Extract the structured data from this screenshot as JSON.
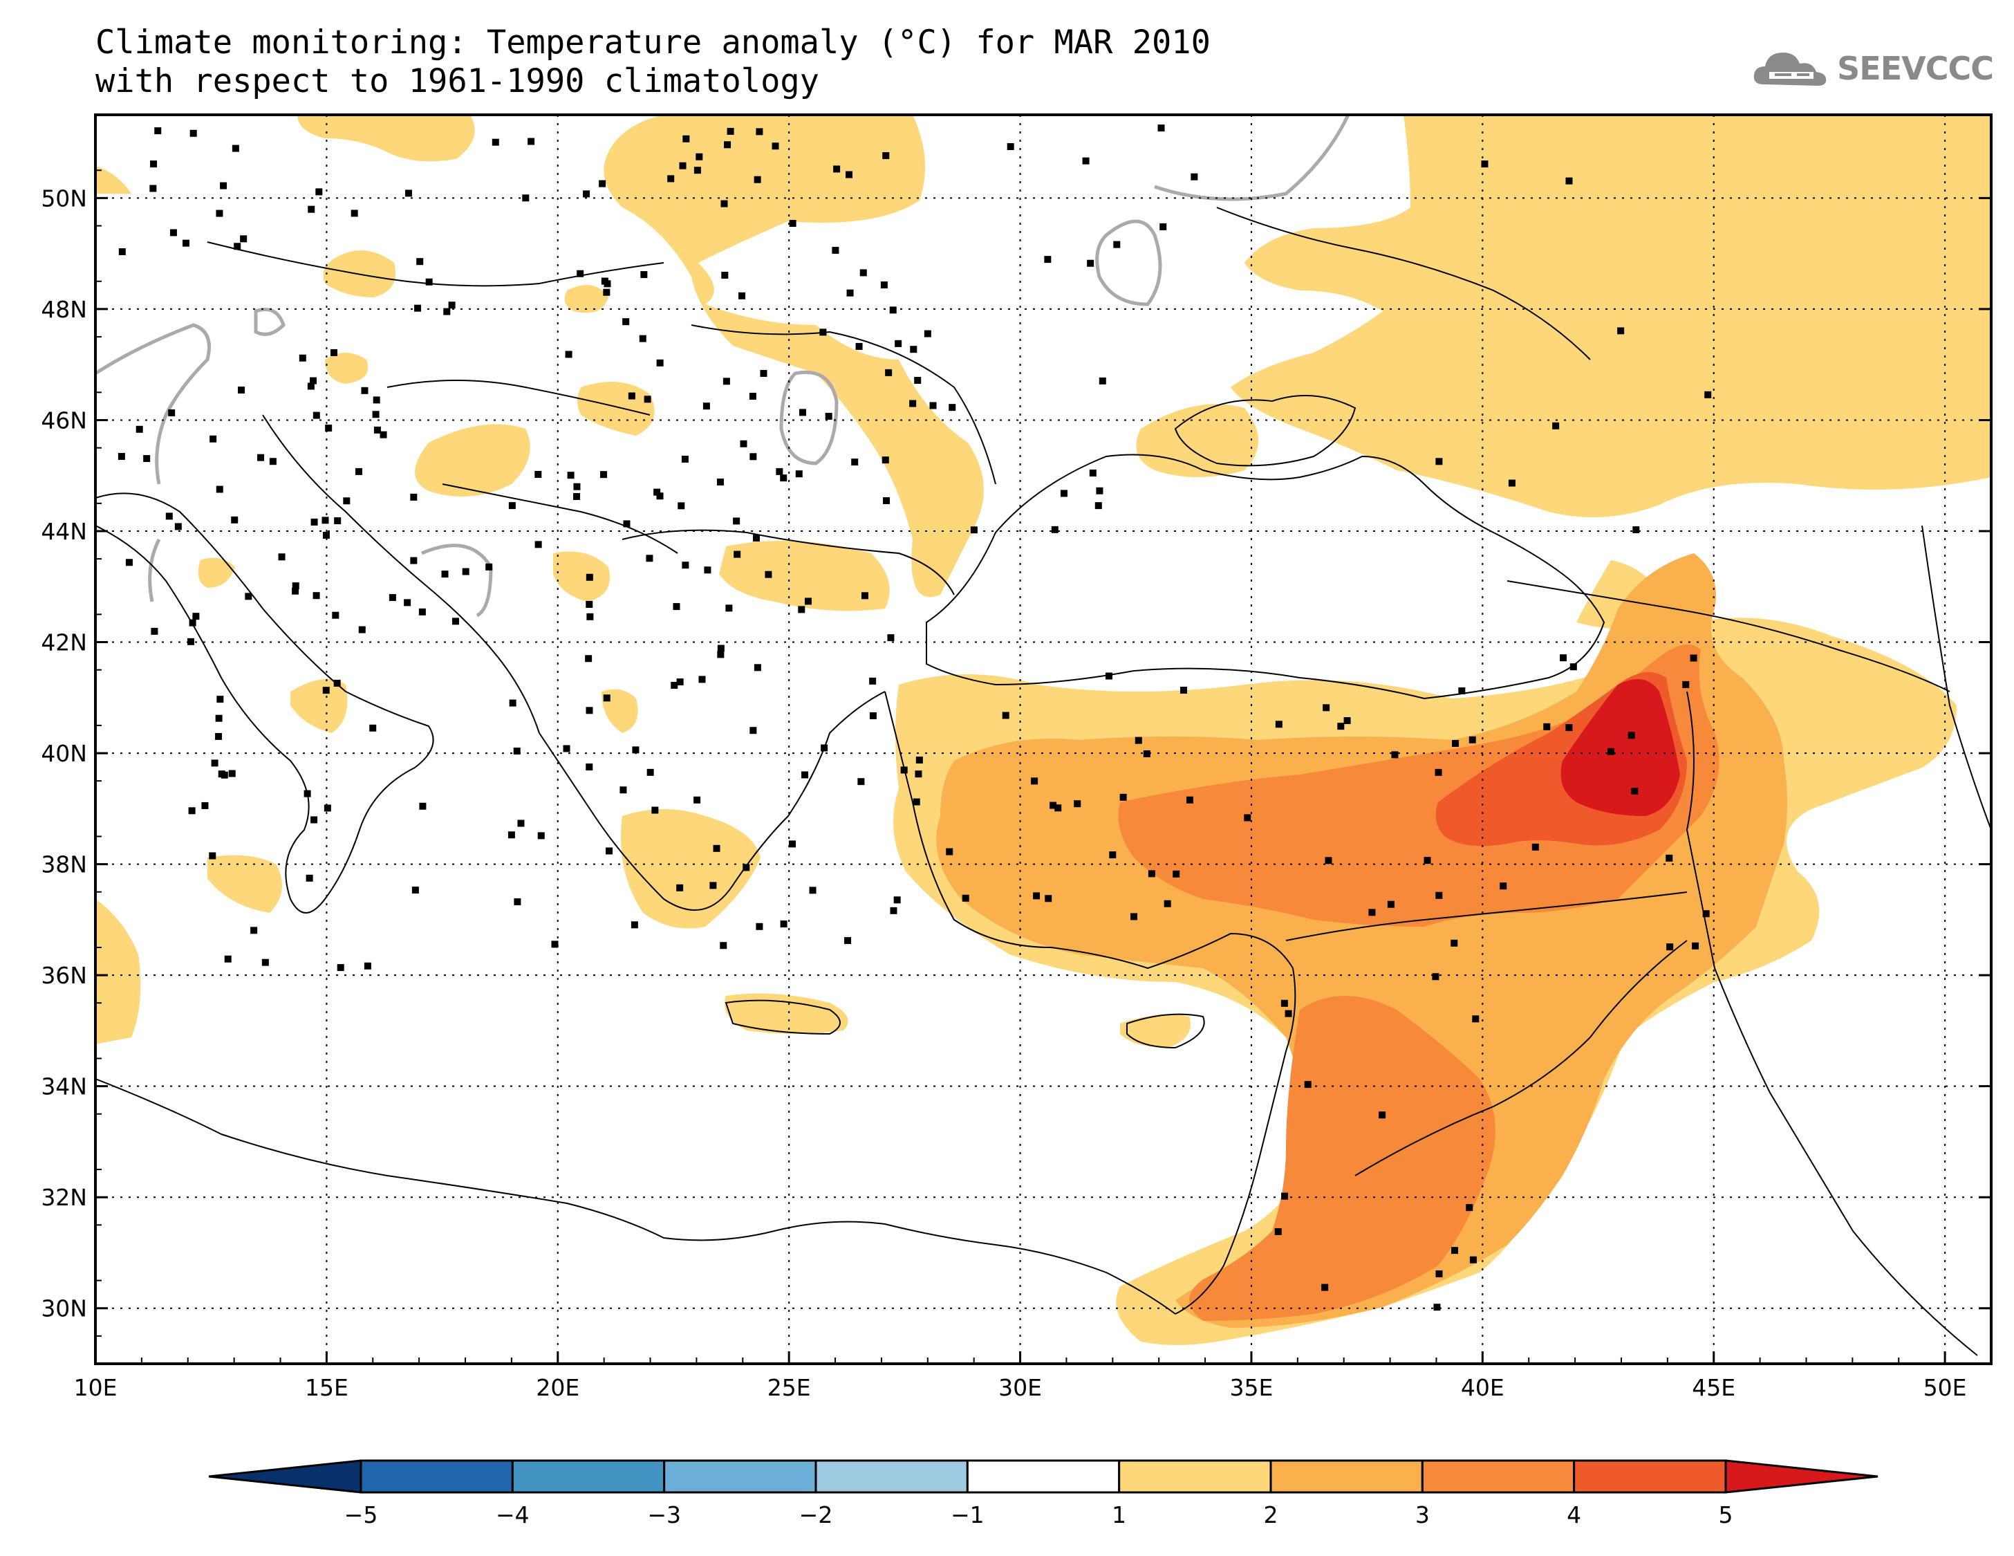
{
  "title": {
    "line1": "Climate monitoring: Temperature anomaly (°C) for MAR 2010",
    "line2": "with respect to 1961-1990 climatology"
  },
  "logo": {
    "text": "SEEVCCC",
    "icon": "cloud-icon",
    "color": "#8a8a8a"
  },
  "map": {
    "lon_range": [
      10,
      51
    ],
    "lat_range": [
      29,
      51.5
    ],
    "lon_ticks": [
      {
        "value": 10,
        "label": "10E"
      },
      {
        "value": 15,
        "label": "15E"
      },
      {
        "value": 20,
        "label": "20E"
      },
      {
        "value": 25,
        "label": "25E"
      },
      {
        "value": 30,
        "label": "30E"
      },
      {
        "value": 35,
        "label": "35E"
      },
      {
        "value": 40,
        "label": "40E"
      },
      {
        "value": 45,
        "label": "45E"
      },
      {
        "value": 50,
        "label": "50E"
      }
    ],
    "lat_ticks": [
      {
        "value": 30,
        "label": "30N"
      },
      {
        "value": 32,
        "label": "32N"
      },
      {
        "value": 34,
        "label": "34N"
      },
      {
        "value": 36,
        "label": "36N"
      },
      {
        "value": 38,
        "label": "38N"
      },
      {
        "value": 40,
        "label": "40N"
      },
      {
        "value": 42,
        "label": "42N"
      },
      {
        "value": 44,
        "label": "44N"
      },
      {
        "value": 46,
        "label": "46N"
      },
      {
        "value": 48,
        "label": "48N"
      },
      {
        "value": 50,
        "label": "50N"
      }
    ],
    "grid": "dotted"
  },
  "colorbar": {
    "labels": [
      "-5",
      "-4",
      "-3",
      "-2",
      "-1",
      "1",
      "2",
      "3",
      "4",
      "5"
    ],
    "colors": [
      "#08306b",
      "#2166ac",
      "#4393c3",
      "#6baed6",
      "#9ecae1",
      "#ffffff",
      "#fdd77a",
      "#fbb04e",
      "#f7893a",
      "#ef5a2a",
      "#d7191c"
    ],
    "extend": "both"
  },
  "anomaly_colors": {
    "1-2": "#fdd77a",
    "2-3": "#fbb04e",
    "3-4": "#f7893a",
    "4-5": "#ef5a2a",
    ">5": "#d7191c",
    "negative_contour": "#aaaaaa"
  }
}
